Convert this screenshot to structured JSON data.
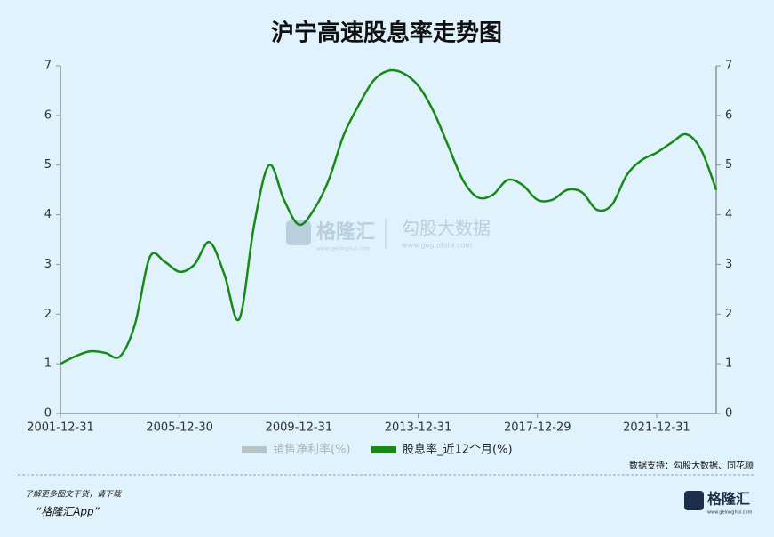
{
  "chart_data": {
    "type": "line",
    "title": "沪宁高速股息率走势图",
    "categories": [
      "2001-12-31",
      null,
      null,
      null,
      null,
      null,
      null,
      null,
      "2005-12-30",
      null,
      null,
      null,
      null,
      null,
      null,
      null,
      "2009-12-31",
      null,
      null,
      null,
      null,
      null,
      null,
      null,
      "2013-12-31",
      null,
      null,
      null,
      null,
      null,
      null,
      null,
      "2017-12-29",
      null,
      null,
      null,
      null,
      null,
      null,
      null,
      "2021-12-31",
      null,
      null,
      null,
      null
    ],
    "series": [
      {
        "name": "销售净利率(%)",
        "color": "#b8c4c8",
        "values": [
          null,
          null,
          null,
          null,
          null,
          null,
          null,
          null,
          null,
          null,
          null,
          null,
          null,
          null,
          null,
          null,
          null,
          null,
          null,
          null,
          null,
          null,
          null,
          null,
          null,
          null,
          null,
          null,
          null,
          null,
          null,
          null,
          null,
          null,
          null,
          null,
          null,
          null,
          null,
          null,
          null,
          null,
          null,
          null,
          null
        ]
      },
      {
        "name": "股息率_近12个月(%)",
        "color": "#168a16",
        "values": [
          1.0,
          1.15,
          1.25,
          1.22,
          1.15,
          1.8,
          3.15,
          3.05,
          2.85,
          3.0,
          3.45,
          2.8,
          1.9,
          3.8,
          5.0,
          4.3,
          3.8,
          4.1,
          4.7,
          5.6,
          6.2,
          6.7,
          6.9,
          6.85,
          6.6,
          6.1,
          5.4,
          4.7,
          4.35,
          4.4,
          4.7,
          4.6,
          4.3,
          4.3,
          4.5,
          4.45,
          4.1,
          4.2,
          4.8,
          5.1,
          5.25,
          5.45,
          5.62,
          5.3,
          4.5
        ]
      }
    ],
    "ylim": [
      0,
      7
    ],
    "yticks": [
      0,
      1,
      2,
      3,
      4,
      5,
      6,
      7
    ],
    "y2lim": [
      0,
      7
    ],
    "y2ticks": [
      0,
      1,
      2,
      3,
      4,
      5,
      6,
      7
    ],
    "source": "数据支持：勾股大数据、同花顺"
  },
  "watermark": {
    "brand": "格隆汇",
    "brand_url": "www.gelonghui.com",
    "partner": "勾股大数据",
    "partner_url": "www.gogudata.com"
  },
  "footer": {
    "note": "了解更多图文干货，请下载",
    "app": "“格隆汇App”",
    "logo": "格隆汇",
    "logo_url": "www.gelonghui.com"
  }
}
